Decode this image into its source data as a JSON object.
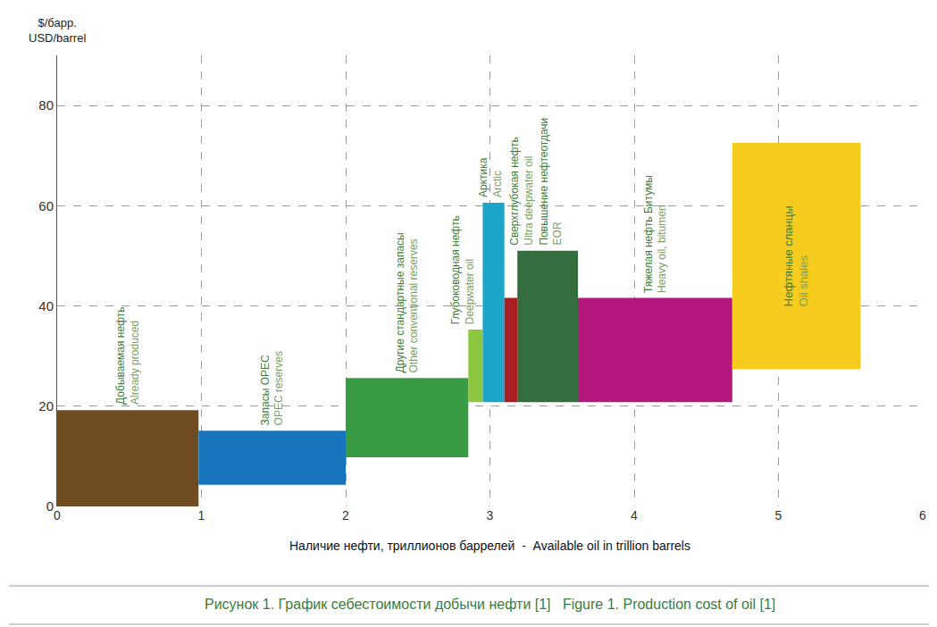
{
  "chart_data": {
    "type": "bar",
    "y_label": [
      "$/барр.",
      "USD/barrel"
    ],
    "x_label": "Наличие нефти, триллионов баррелей  -  Available oil in trillion barrels",
    "caption": "Рисунок 1. График себестоимости добычи нефти [1]   Figure 1. Production cost of oil [1]",
    "xlim": [
      0,
      6
    ],
    "xticks": [
      0,
      1,
      2,
      3,
      4,
      5,
      6
    ],
    "ylim": [
      0,
      90
    ],
    "yticks": [
      0,
      20,
      40,
      60,
      80
    ],
    "grid": true,
    "segments": [
      {
        "label": "Добываемая нефть",
        "label_en": "Already produced",
        "x": [
          0,
          0.98
        ],
        "y": [
          0,
          19.2
        ],
        "color": "#6e4b20"
      },
      {
        "label": "Запасы OPEC",
        "label_en": "OPEC reserves",
        "x": [
          0.98,
          2.0
        ],
        "y": [
          4.3,
          15.1
        ],
        "color": "#1874bb"
      },
      {
        "label": "Другие стандартные запасы",
        "label_en": "Other conventional reserves",
        "x": [
          2.0,
          2.85
        ],
        "y": [
          9.8,
          25.6
        ],
        "color": "#3a9b45"
      },
      {
        "label": "Глубоководная нефть",
        "label_en": "Deepwater oil",
        "x": [
          2.85,
          2.95
        ],
        "y": [
          20.8,
          35.3
        ],
        "color": "#8dc63f"
      },
      {
        "label": "Арктика",
        "label_en": "Arctic",
        "x": [
          2.95,
          3.1
        ],
        "y": [
          20.8,
          60.6
        ],
        "color": "#1ba5c9"
      },
      {
        "label": "Сверхглубокая нефть",
        "label_en": "Ultra deepwater oil",
        "x": [
          3.1,
          3.19
        ],
        "y": [
          20.8,
          41.6
        ],
        "color": "#a91e23"
      },
      {
        "label": "Повышение нефтеотдачи",
        "label_en": "EOR",
        "x": [
          3.19,
          3.61
        ],
        "y": [
          20.8,
          51.0
        ],
        "color": "#346e3f"
      },
      {
        "label": "Тяжелая нефть Битумы",
        "label_en": "Heavy oil, bitumen",
        "x": [
          3.61,
          4.68
        ],
        "y": [
          20.8,
          41.6
        ],
        "color": "#b3187d"
      },
      {
        "label": "Нефтяные сланцы",
        "label_en": "Oil shales",
        "x": [
          4.68,
          5.57
        ],
        "y": [
          27.4,
          72.6
        ],
        "color": "#f6cd1f"
      }
    ]
  }
}
